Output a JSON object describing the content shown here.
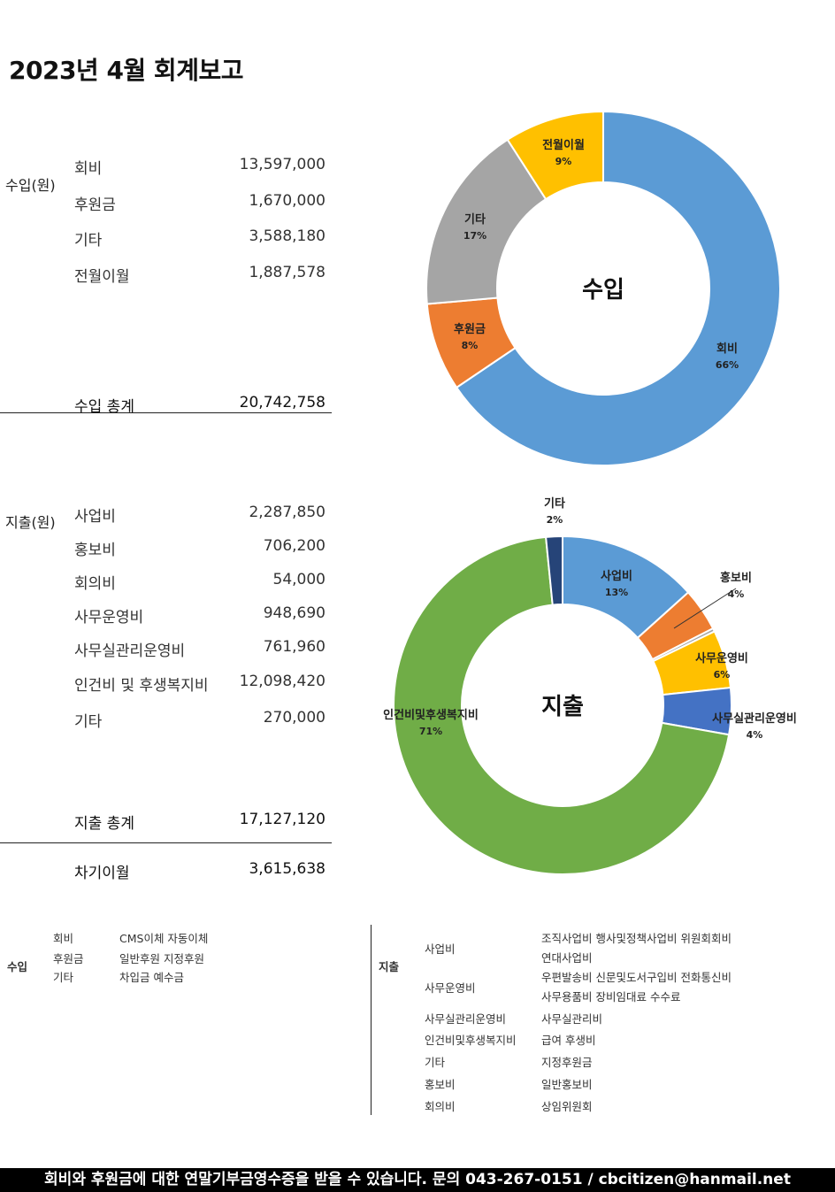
{
  "title": "2023년 4월 회계보고",
  "income": {
    "label": "수입(원)",
    "items": [
      {
        "name": "회비",
        "value": "13,597,000"
      },
      {
        "name": "후원금",
        "value": "1,670,000"
      },
      {
        "name": "기타",
        "value": "3,588,180"
      },
      {
        "name": "전월이월",
        "value": "1,887,578"
      }
    ],
    "total_label": "수입 총계",
    "total_value": "20,742,758"
  },
  "expense": {
    "label": "지출(원)",
    "items": [
      {
        "name": "사업비",
        "value": "2,287,850"
      },
      {
        "name": "홍보비",
        "value": "706,200"
      },
      {
        "name": "회의비",
        "value": "54,000"
      },
      {
        "name": "사무운영비",
        "value": "948,690"
      },
      {
        "name": "사무실관리운영비",
        "value": "761,960"
      },
      {
        "name": "인건비 및 후생복지비",
        "value": "12,098,420"
      },
      {
        "name": "기타",
        "value": "270,000"
      }
    ],
    "total_label": "지출 총계",
    "total_value": "17,127,120",
    "carry_label": "차기이월",
    "carry_value": "3,615,638"
  },
  "chart_data": [
    {
      "type": "pie",
      "title": "수입",
      "slices": [
        {
          "label": "회비",
          "pct_label": "66%",
          "value": 13597000,
          "color": "#5B9BD5"
        },
        {
          "label": "후원금",
          "pct_label": "8%",
          "value": 1670000,
          "color": "#ED7D31"
        },
        {
          "label": "기타",
          "pct_label": "17%",
          "value": 3588180,
          "color": "#A5A5A5"
        },
        {
          "label": "전월이월",
          "pct_label": "9%",
          "value": 1887578,
          "color": "#FFC000"
        }
      ]
    },
    {
      "type": "pie",
      "title": "지출",
      "slices": [
        {
          "label": "사업비",
          "pct_label": "13%",
          "value": 2287850,
          "color": "#5B9BD5"
        },
        {
          "label": "홍보비",
          "pct_label": "4%",
          "value": 706200,
          "color": "#ED7D31"
        },
        {
          "label": "",
          "pct_label": "",
          "value": 54000,
          "color": "#A5A5A5"
        },
        {
          "label": "사무운영비",
          "pct_label": "6%",
          "value": 948690,
          "color": "#FFC000"
        },
        {
          "label": "사무실관리운영비",
          "pct_label": "4%",
          "value": 761960,
          "color": "#4472C4"
        },
        {
          "label": "인건비및후생복지비",
          "pct_label": "71%",
          "value": 12098420,
          "color": "#70AD47"
        },
        {
          "label": "기타",
          "pct_label": "2%",
          "value": 270000,
          "color": "#264478"
        }
      ]
    }
  ],
  "legend": {
    "income": {
      "label": "수입",
      "rows": [
        {
          "name": "회비",
          "desc": "CMS이체 자동이체"
        },
        {
          "name": "후원금",
          "desc": "일반후원 지정후원"
        },
        {
          "name": "기타",
          "desc": "차입금 예수금"
        }
      ]
    },
    "expense": {
      "label": "지출",
      "rows": [
        {
          "name": "사업비",
          "desc1": "조직사업비 행사및정책사업비 위원회회비",
          "desc2": "연대사업비"
        },
        {
          "name": "사무운영비",
          "desc1": "우편발송비 신문및도서구입비 전화통신비",
          "desc2": "사무용품비 장비임대료 수수료"
        },
        {
          "name": "사무실관리운영비",
          "desc1": "사무실관리비"
        },
        {
          "name": "인건비및후생복지비",
          "desc1": "급여 후생비"
        },
        {
          "name": "기타",
          "desc1": "지정후원금"
        },
        {
          "name": "홍보비",
          "desc1": "일반홍보비"
        },
        {
          "name": "회의비",
          "desc1": "상임위원회"
        }
      ]
    }
  },
  "footer": "회비와 후원금에 대한 연말기부금영수증을 받을 수 있습니다. 문의 043-267-0151 / cbcitizen@hanmail.net"
}
